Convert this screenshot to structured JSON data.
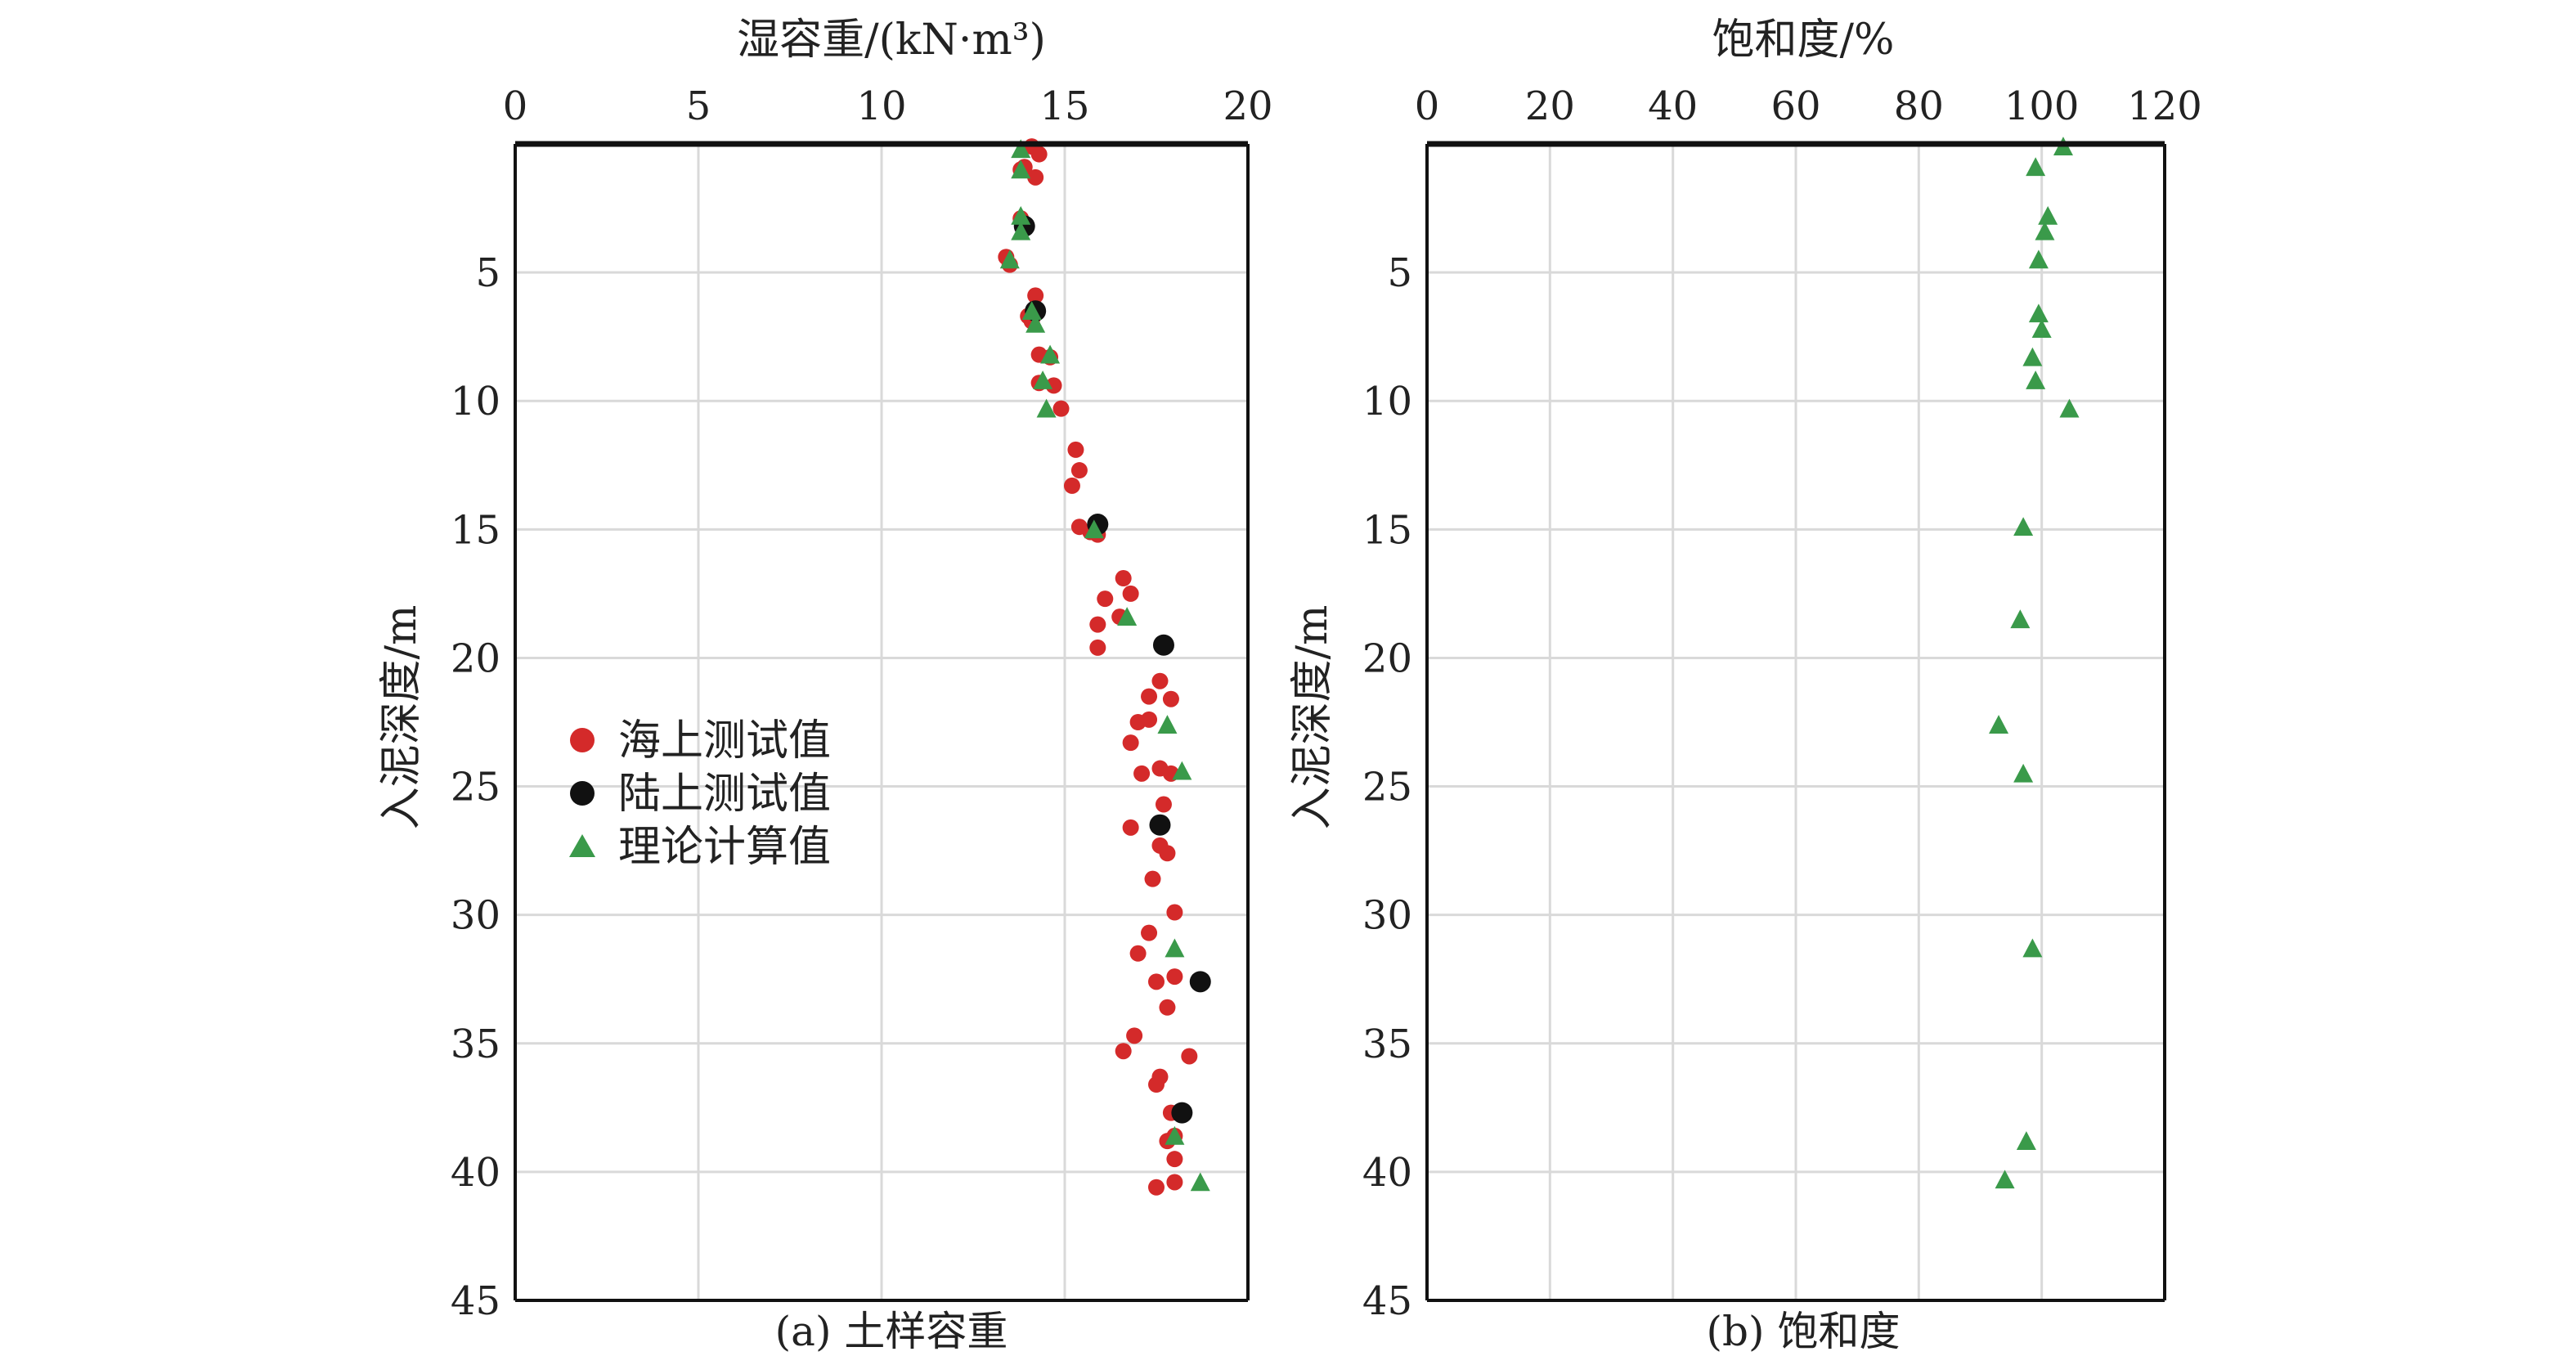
{
  "chart_data": [
    {
      "type": "scatter",
      "panel": "a",
      "title": "",
      "xlabel": "湿容重/(kN·m³)",
      "ylabel": "入泥深度/m",
      "caption": "(a) 土样容重",
      "xlim": [
        0,
        20
      ],
      "ylim": [
        45,
        0
      ],
      "x_ticks": [
        "0",
        "5",
        "10",
        "15",
        "20"
      ],
      "y_ticks": [
        "5",
        "10",
        "15",
        "20",
        "25",
        "30",
        "35",
        "40",
        "45"
      ],
      "x_axis_position": "top",
      "y_axis_inverted": true,
      "grid": true,
      "legend_position": "middle-left",
      "series": [
        {
          "name": "海上测试值",
          "marker": "circle",
          "color": "#d42a2a",
          "points": [
            [
              14.1,
              0.1
            ],
            [
              14.3,
              0.4
            ],
            [
              13.9,
              0.9
            ],
            [
              13.8,
              1.0
            ],
            [
              14.2,
              1.3
            ],
            [
              13.8,
              2.9
            ],
            [
              13.4,
              4.4
            ],
            [
              13.5,
              4.7
            ],
            [
              14.2,
              5.9
            ],
            [
              14.0,
              6.7
            ],
            [
              14.1,
              6.9
            ],
            [
              14.3,
              8.2
            ],
            [
              14.6,
              8.3
            ],
            [
              14.3,
              9.3
            ],
            [
              14.7,
              9.4
            ],
            [
              14.9,
              10.3
            ],
            [
              15.3,
              11.9
            ],
            [
              15.4,
              12.7
            ],
            [
              15.2,
              13.3
            ],
            [
              15.4,
              14.9
            ],
            [
              15.7,
              15.1
            ],
            [
              15.9,
              15.2
            ],
            [
              16.6,
              16.9
            ],
            [
              16.8,
              17.5
            ],
            [
              16.1,
              17.7
            ],
            [
              16.5,
              18.4
            ],
            [
              15.9,
              18.7
            ],
            [
              15.9,
              19.6
            ],
            [
              17.6,
              20.9
            ],
            [
              17.3,
              21.5
            ],
            [
              17.9,
              21.6
            ],
            [
              17.0,
              22.5
            ],
            [
              17.3,
              22.4
            ],
            [
              16.8,
              23.3
            ],
            [
              17.1,
              24.5
            ],
            [
              17.6,
              24.3
            ],
            [
              17.9,
              24.5
            ],
            [
              17.7,
              25.7
            ],
            [
              16.8,
              26.6
            ],
            [
              17.6,
              27.3
            ],
            [
              17.8,
              27.6
            ],
            [
              17.4,
              28.6
            ],
            [
              18.0,
              29.9
            ],
            [
              17.3,
              30.7
            ],
            [
              17.0,
              31.5
            ],
            [
              18.0,
              32.4
            ],
            [
              17.5,
              32.6
            ],
            [
              17.8,
              33.6
            ],
            [
              16.9,
              34.7
            ],
            [
              16.6,
              35.3
            ],
            [
              18.4,
              35.5
            ],
            [
              17.6,
              36.3
            ],
            [
              17.5,
              36.6
            ],
            [
              17.9,
              37.7
            ],
            [
              18.0,
              38.6
            ],
            [
              17.8,
              38.8
            ],
            [
              18.0,
              39.5
            ],
            [
              18.0,
              40.4
            ],
            [
              17.5,
              40.6
            ]
          ]
        },
        {
          "name": "陆上测试值",
          "marker": "circle",
          "color": "#111111",
          "points": [
            [
              13.9,
              3.2
            ],
            [
              14.2,
              6.5
            ],
            [
              15.9,
              14.8
            ],
            [
              17.7,
              19.5
            ],
            [
              17.6,
              26.5
            ],
            [
              18.7,
              32.6
            ],
            [
              18.2,
              37.7
            ]
          ]
        },
        {
          "name": "理论计算值",
          "marker": "triangle",
          "color": "#3a9a4a",
          "points": [
            [
              13.8,
              0.2
            ],
            [
              13.8,
              1.0
            ],
            [
              13.8,
              2.8
            ],
            [
              13.8,
              3.4
            ],
            [
              13.5,
              4.5
            ],
            [
              14.1,
              6.5
            ],
            [
              14.2,
              7.0
            ],
            [
              14.6,
              8.2
            ],
            [
              14.4,
              9.2
            ],
            [
              14.5,
              10.3
            ],
            [
              15.8,
              15.0
            ],
            [
              16.7,
              18.4
            ],
            [
              17.8,
              22.6
            ],
            [
              18.2,
              24.4
            ],
            [
              18.0,
              31.3
            ],
            [
              18.0,
              38.6
            ],
            [
              18.7,
              40.4
            ]
          ]
        }
      ]
    },
    {
      "type": "scatter",
      "panel": "b",
      "title": "",
      "xlabel": "饱和度/%",
      "ylabel": "入泥深度/m",
      "caption": "(b) 饱和度",
      "xlim": [
        0,
        120
      ],
      "ylim": [
        45,
        0
      ],
      "x_ticks": [
        "0",
        "20",
        "40",
        "60",
        "80",
        "100",
        "120"
      ],
      "y_ticks": [
        "5",
        "10",
        "15",
        "20",
        "25",
        "30",
        "35",
        "40",
        "45"
      ],
      "x_axis_position": "top",
      "y_axis_inverted": true,
      "grid": true,
      "series": [
        {
          "name": "理论计算值",
          "marker": "triangle",
          "color": "#3a9a4a",
          "points": [
            [
              103.5,
              0.1
            ],
            [
              99.0,
              0.9
            ],
            [
              101.0,
              2.8
            ],
            [
              100.5,
              3.4
            ],
            [
              99.5,
              4.5
            ],
            [
              99.5,
              6.6
            ],
            [
              100.0,
              7.2
            ],
            [
              98.5,
              8.3
            ],
            [
              99.0,
              9.2
            ],
            [
              104.5,
              10.3
            ],
            [
              97.0,
              14.9
            ],
            [
              96.5,
              18.5
            ],
            [
              93.0,
              22.6
            ],
            [
              97.0,
              24.5
            ],
            [
              98.5,
              31.3
            ],
            [
              97.5,
              38.8
            ],
            [
              94.0,
              40.3
            ]
          ]
        }
      ]
    }
  ]
}
